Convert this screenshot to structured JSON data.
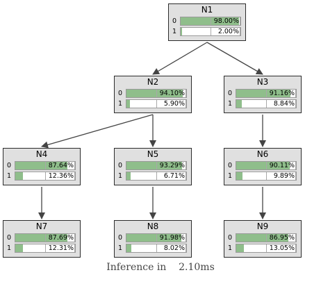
{
  "nodes": [
    {
      "id": "N1",
      "title": "N1",
      "rows": [
        {
          "label": "0",
          "percent": 98.0,
          "text": "98.00%"
        },
        {
          "label": "1",
          "percent": 2.0,
          "text": "2.00%"
        }
      ]
    },
    {
      "id": "N2",
      "title": "N2",
      "rows": [
        {
          "label": "0",
          "percent": 94.1,
          "text": "94.10%"
        },
        {
          "label": "1",
          "percent": 5.9,
          "text": "5.90%"
        }
      ]
    },
    {
      "id": "N3",
      "title": "N3",
      "rows": [
        {
          "label": "0",
          "percent": 91.16,
          "text": "91.16%"
        },
        {
          "label": "1",
          "percent": 8.84,
          "text": "8.84%"
        }
      ]
    },
    {
      "id": "N4",
      "title": "N4",
      "rows": [
        {
          "label": "0",
          "percent": 87.64,
          "text": "87.64%"
        },
        {
          "label": "1",
          "percent": 12.36,
          "text": "12.36%"
        }
      ]
    },
    {
      "id": "N5",
      "title": "N5",
      "rows": [
        {
          "label": "0",
          "percent": 93.29,
          "text": "93.29%"
        },
        {
          "label": "1",
          "percent": 6.71,
          "text": "6.71%"
        }
      ]
    },
    {
      "id": "N6",
      "title": "N6",
      "rows": [
        {
          "label": "0",
          "percent": 90.11,
          "text": "90.11%"
        },
        {
          "label": "1",
          "percent": 9.89,
          "text": "9.89%"
        }
      ]
    },
    {
      "id": "N7",
      "title": "N7",
      "rows": [
        {
          "label": "0",
          "percent": 87.69,
          "text": "87.69%"
        },
        {
          "label": "1",
          "percent": 12.31,
          "text": "12.31%"
        }
      ]
    },
    {
      "id": "N8",
      "title": "N8",
      "rows": [
        {
          "label": "0",
          "percent": 91.98,
          "text": "91.98%"
        },
        {
          "label": "1",
          "percent": 8.02,
          "text": "8.02%"
        }
      ]
    },
    {
      "id": "N9",
      "title": "N9",
      "rows": [
        {
          "label": "0",
          "percent": 86.95,
          "text": "86.95%"
        },
        {
          "label": "1",
          "percent": 13.05,
          "text": "13.05%"
        }
      ]
    }
  ],
  "edges": [
    [
      "N1",
      "N2"
    ],
    [
      "N1",
      "N3"
    ],
    [
      "N2",
      "N4"
    ],
    [
      "N2",
      "N5"
    ],
    [
      "N3",
      "N6"
    ],
    [
      "N4",
      "N7"
    ],
    [
      "N5",
      "N8"
    ],
    [
      "N6",
      "N9"
    ]
  ],
  "colors": {
    "node_bg": "#e0e0e0",
    "bar_fill": "#8fbe8b",
    "edge": "#444444"
  },
  "footer": {
    "label": "Inference in",
    "value": "2.10ms"
  }
}
